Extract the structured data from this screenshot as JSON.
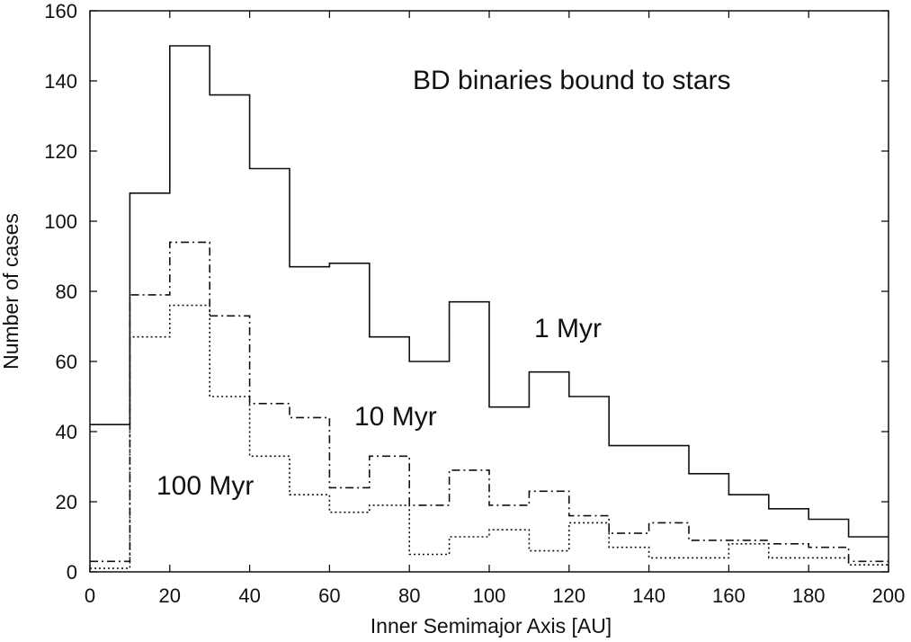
{
  "chart_data": {
    "type": "line",
    "step": "histogram",
    "title": "",
    "xlabel": "Inner Semimajor Axis [AU]",
    "ylabel": "Number of cases",
    "xlim": [
      0,
      200
    ],
    "ylim": [
      0,
      160
    ],
    "xticks": [
      0,
      20,
      40,
      60,
      80,
      100,
      120,
      140,
      160,
      180,
      200
    ],
    "yticks": [
      0,
      20,
      40,
      60,
      80,
      100,
      120,
      140,
      160
    ],
    "bin_edges": [
      0,
      10,
      20,
      30,
      40,
      50,
      60,
      70,
      80,
      90,
      100,
      110,
      120,
      130,
      140,
      150,
      160,
      170,
      180,
      190,
      200
    ],
    "grid": false,
    "legend": "none",
    "annotations": [
      {
        "text": "BD binaries bound to stars"
      },
      {
        "text": "1 Myr"
      },
      {
        "text": "10 Myr"
      },
      {
        "text": "100 Myr"
      }
    ],
    "series": [
      {
        "label": "1 Myr",
        "line_style": "solid",
        "values": [
          42,
          108,
          150,
          136,
          115,
          87,
          88,
          67,
          60,
          77,
          47,
          57,
          50,
          36,
          36,
          28,
          22,
          18,
          15,
          10
        ]
      },
      {
        "label": "10 Myr",
        "line_style": "dash-dot",
        "values": [
          3,
          79,
          94,
          73,
          48,
          44,
          24,
          33,
          19,
          29,
          19,
          23,
          16,
          11,
          14,
          9,
          9,
          8,
          7,
          3
        ]
      },
      {
        "label": "100 Myr",
        "line_style": "dotted",
        "values": [
          1,
          67,
          76,
          50,
          33,
          22,
          17,
          19,
          5,
          10,
          12,
          6,
          14,
          7,
          4,
          4,
          8,
          4,
          4,
          2
        ]
      }
    ]
  }
}
